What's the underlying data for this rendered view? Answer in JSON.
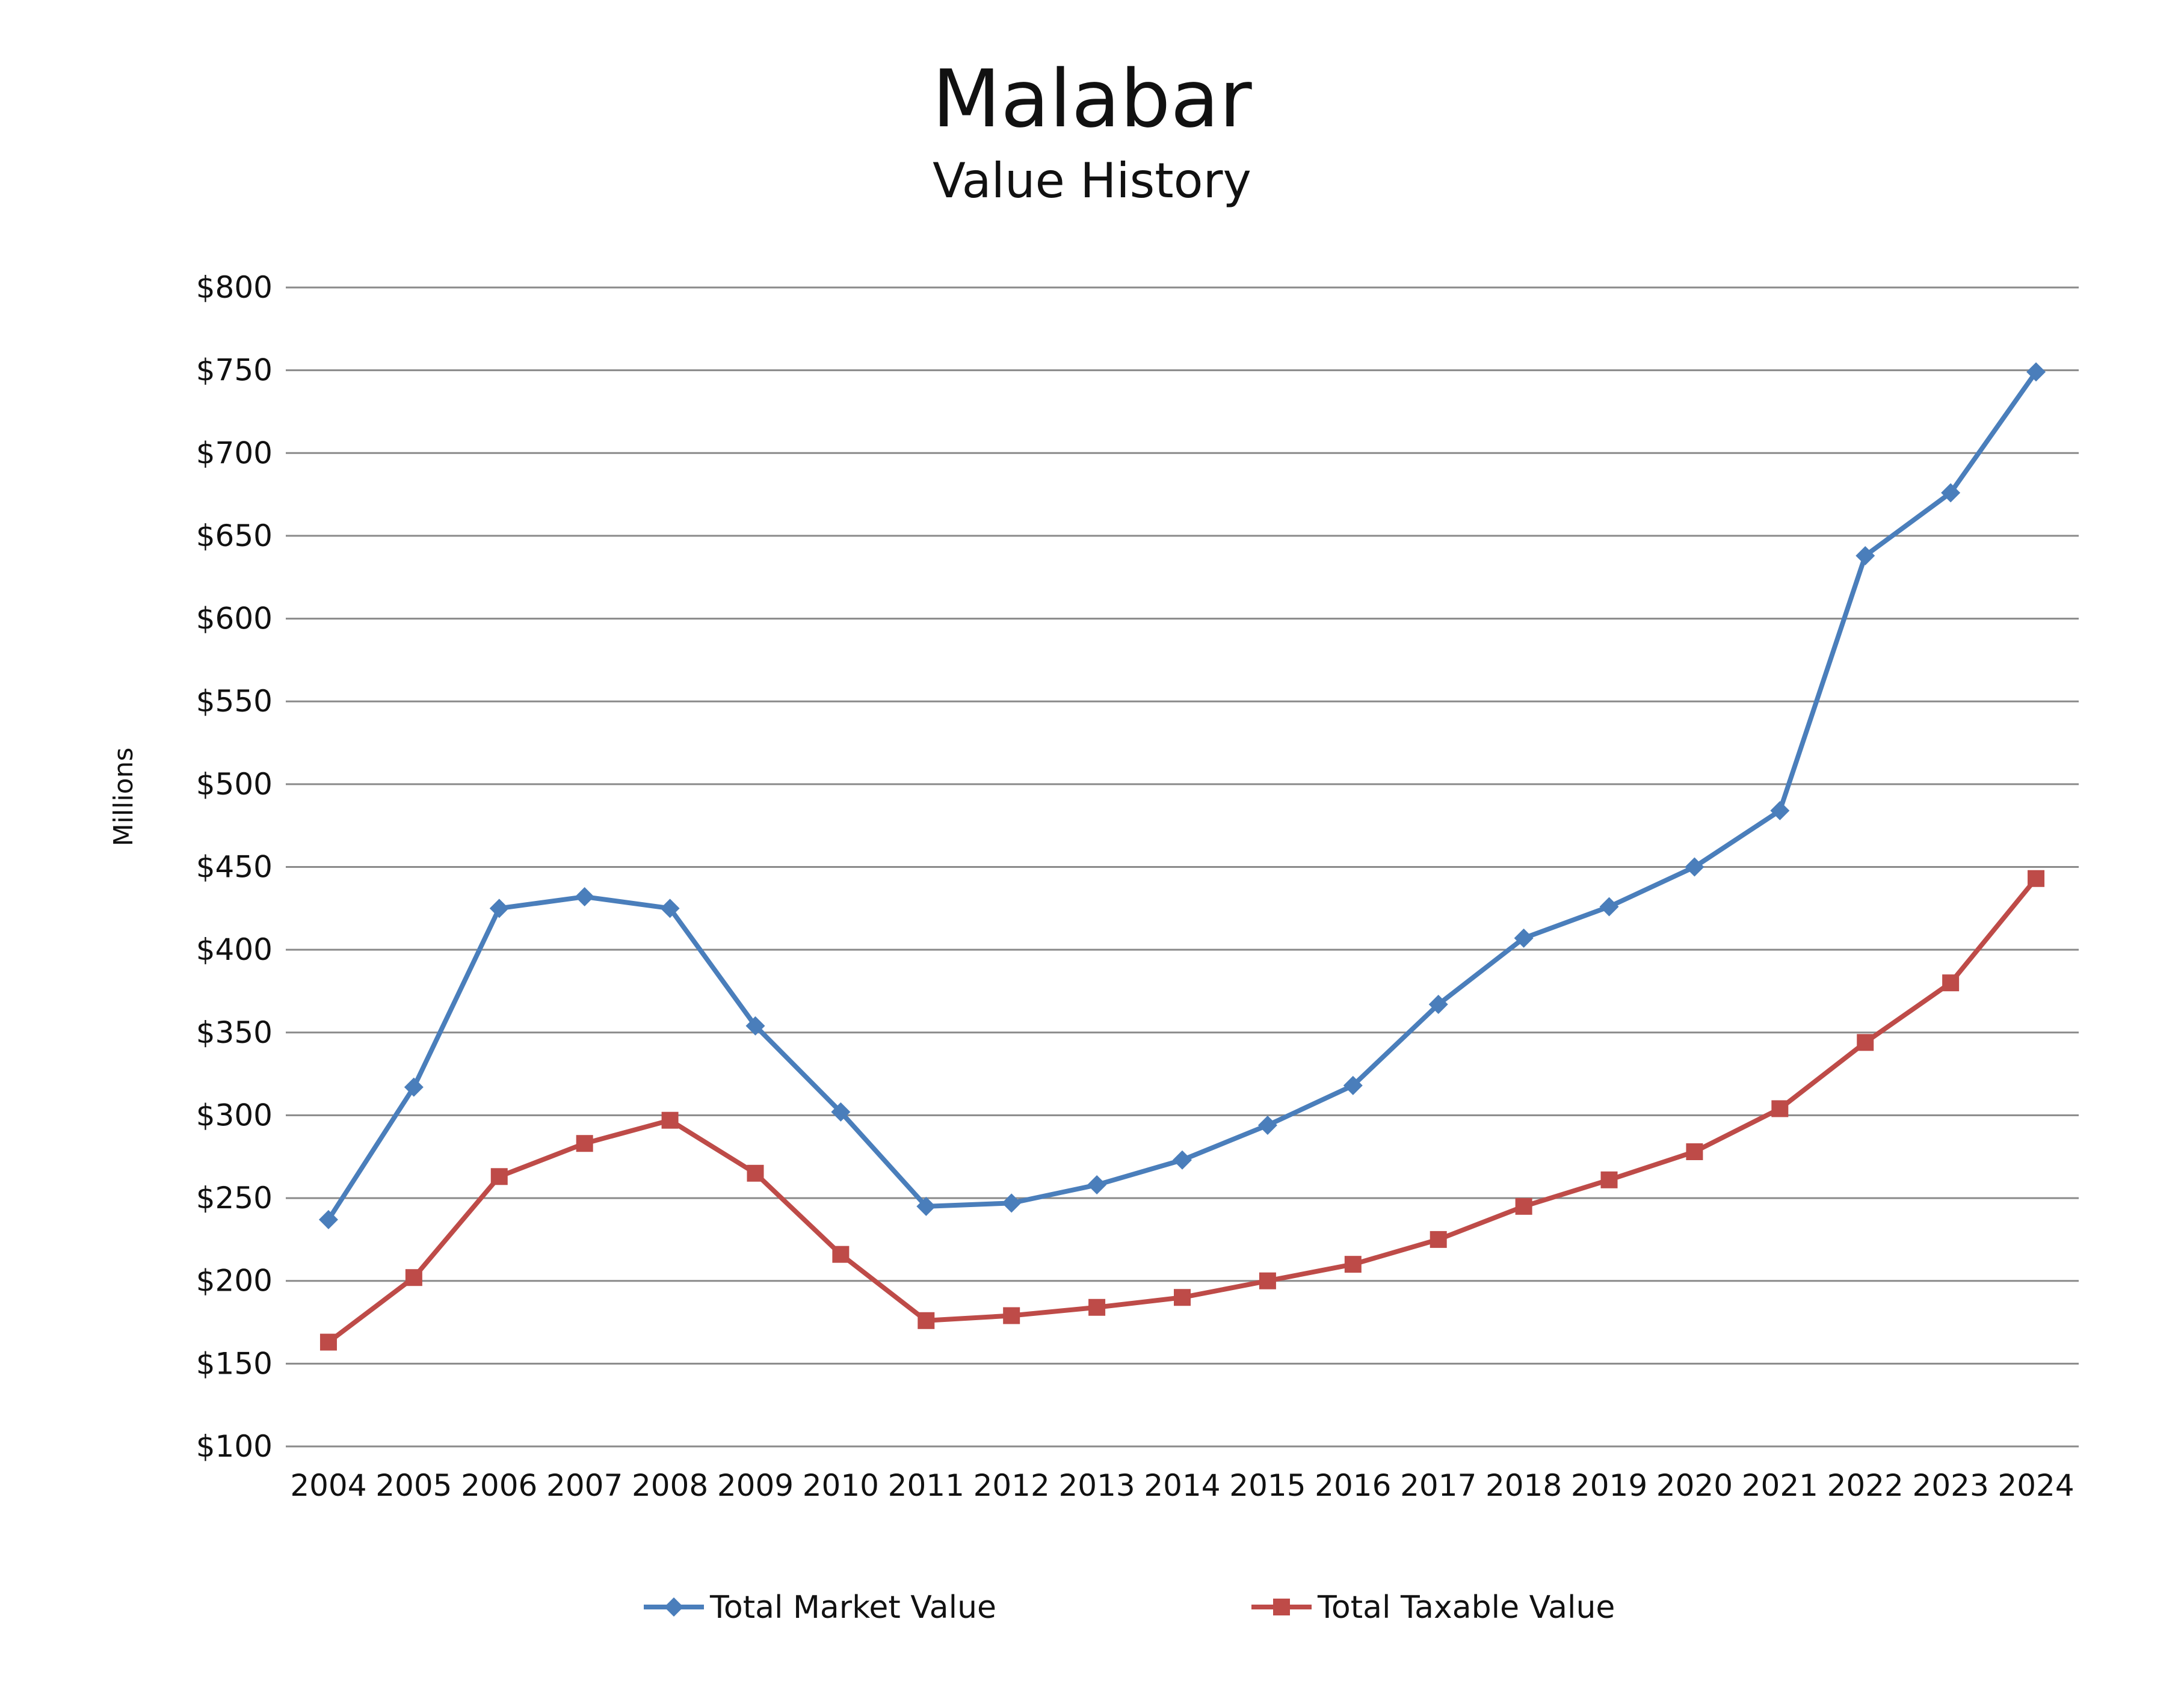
{
  "chart_data": {
    "type": "line",
    "title": "Malabar",
    "subtitle": "Value History",
    "ylabel": "Millions",
    "xlabel": "",
    "x": [
      2004,
      2005,
      2006,
      2007,
      2008,
      2009,
      2010,
      2011,
      2012,
      2013,
      2014,
      2015,
      2016,
      2017,
      2018,
      2019,
      2020,
      2021,
      2022,
      2023,
      2024
    ],
    "x_tick_labels": [
      "2004",
      "2005",
      "2006",
      "2007",
      "2008",
      "2009",
      "2010",
      "2011",
      "2012",
      "2013",
      "2014",
      "2015",
      "2016",
      "2017",
      "2018",
      "2019",
      "2020",
      "2021",
      "2022",
      "2023",
      "2024"
    ],
    "ylim": [
      100,
      800
    ],
    "y_ticks": [
      100,
      150,
      200,
      250,
      300,
      350,
      400,
      450,
      500,
      550,
      600,
      650,
      700,
      750,
      800
    ],
    "y_tick_labels": [
      "$100",
      "$150",
      "$200",
      "$250",
      "$300",
      "$350",
      "$400",
      "$450",
      "$500",
      "$550",
      "$600",
      "$650",
      "$700",
      "$750",
      "$800"
    ],
    "grid": true,
    "legend_position": "bottom",
    "series": [
      {
        "name": "Total Market Value",
        "color": "#4a7ebb",
        "marker": "diamond",
        "values": [
          237,
          317,
          425,
          432,
          425,
          354,
          302,
          245,
          247,
          258,
          273,
          294,
          318,
          367,
          407,
          426,
          450,
          484,
          638,
          676,
          749
        ]
      },
      {
        "name": "Total Taxable Value",
        "color": "#be4b48",
        "marker": "square",
        "values": [
          163,
          202,
          263,
          283,
          297,
          265,
          216,
          176,
          179,
          184,
          190,
          200,
          210,
          225,
          245,
          261,
          278,
          304,
          344,
          380,
          443
        ]
      }
    ]
  }
}
